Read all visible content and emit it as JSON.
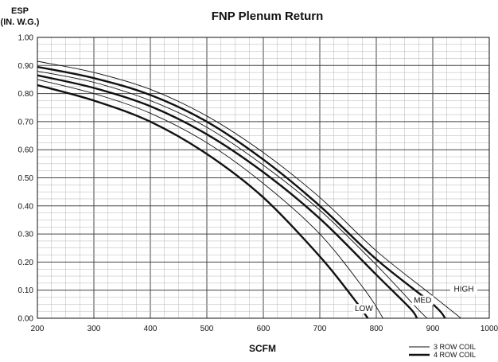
{
  "chart_data": {
    "type": "line",
    "title": "FNP Plenum Return",
    "ylabel_line1": "ESP",
    "ylabel_line2": "(IN. W.G.)",
    "xlabel": "SCFM",
    "xlim": [
      200,
      1000
    ],
    "ylim": [
      0,
      1.0
    ],
    "x_ticks": [
      "200",
      "300",
      "400",
      "500",
      "600",
      "700",
      "800",
      "900",
      "1000"
    ],
    "y_ticks": [
      "0.00",
      "0.10",
      "0.20",
      "0.30",
      "0.40",
      "0.50",
      "0.60",
      "0.70",
      "0.80",
      "0.90",
      "1.00"
    ],
    "grid": true,
    "legend": [
      {
        "label": "3 ROW COIL",
        "style": "thin"
      },
      {
        "label": "4 ROW COIL",
        "style": "thick"
      }
    ],
    "annotations": [
      {
        "text": "HIGH",
        "x": 955,
        "y": 0.095
      },
      {
        "text": "MED",
        "x": 882,
        "y": 0.055
      },
      {
        "text": "LOW",
        "x": 778,
        "y": 0.025
      }
    ],
    "series": [
      {
        "coil": "3 ROW COIL",
        "speed": "HIGH",
        "style": "thin",
        "points": [
          [
            200,
            0.915
          ],
          [
            300,
            0.875
          ],
          [
            400,
            0.815
          ],
          [
            500,
            0.72
          ],
          [
            600,
            0.59
          ],
          [
            700,
            0.43
          ],
          [
            800,
            0.24
          ],
          [
            900,
            0.08
          ],
          [
            950,
            0.0
          ]
        ]
      },
      {
        "coil": "4 ROW COIL",
        "speed": "HIGH",
        "style": "thick",
        "points": [
          [
            200,
            0.895
          ],
          [
            300,
            0.855
          ],
          [
            400,
            0.795
          ],
          [
            500,
            0.7
          ],
          [
            600,
            0.565
          ],
          [
            700,
            0.4
          ],
          [
            800,
            0.21
          ],
          [
            900,
            0.05
          ],
          [
            922,
            0.0
          ]
        ]
      },
      {
        "coil": "3 ROW COIL",
        "speed": "MED",
        "style": "thin",
        "points": [
          [
            200,
            0.88
          ],
          [
            300,
            0.84
          ],
          [
            400,
            0.775
          ],
          [
            500,
            0.68
          ],
          [
            600,
            0.545
          ],
          [
            700,
            0.385
          ],
          [
            800,
            0.19
          ],
          [
            870,
            0.04
          ],
          [
            890,
            0.0
          ]
        ]
      },
      {
        "coil": "4 ROW COIL",
        "speed": "MED",
        "style": "thick",
        "points": [
          [
            200,
            0.865
          ],
          [
            300,
            0.82
          ],
          [
            400,
            0.755
          ],
          [
            500,
            0.655
          ],
          [
            600,
            0.52
          ],
          [
            700,
            0.355
          ],
          [
            800,
            0.155
          ],
          [
            860,
            0.035
          ],
          [
            872,
            0.0
          ]
        ]
      },
      {
        "coil": "3 ROW COIL",
        "speed": "LOW",
        "style": "thin",
        "points": [
          [
            200,
            0.85
          ],
          [
            300,
            0.8
          ],
          [
            400,
            0.73
          ],
          [
            500,
            0.625
          ],
          [
            600,
            0.48
          ],
          [
            700,
            0.3
          ],
          [
            780,
            0.1
          ],
          [
            812,
            0.0
          ]
        ]
      },
      {
        "coil": "4 ROW COIL",
        "speed": "LOW",
        "style": "thick",
        "points": [
          [
            200,
            0.83
          ],
          [
            300,
            0.775
          ],
          [
            400,
            0.7
          ],
          [
            500,
            0.585
          ],
          [
            600,
            0.43
          ],
          [
            700,
            0.22
          ],
          [
            760,
            0.07
          ],
          [
            785,
            0.0
          ]
        ]
      }
    ]
  }
}
